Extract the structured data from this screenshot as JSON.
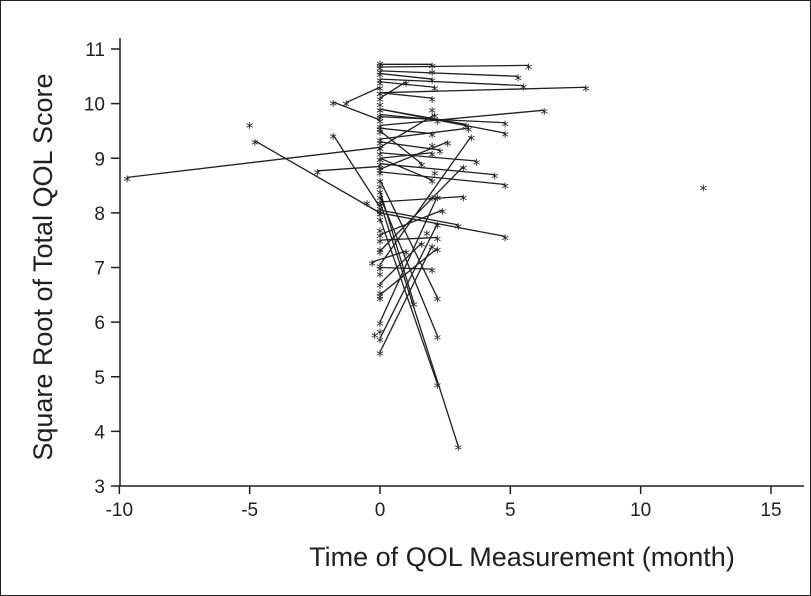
{
  "chart_data": {
    "type": "scatter",
    "title": "",
    "xlabel": "Time of QOL Measurement (month)",
    "ylabel": "Square Root of Total QOL Score",
    "xlim": [
      -10,
      16
    ],
    "ylim": [
      3,
      11.2
    ],
    "xticks": [
      -10,
      -5,
      0,
      5,
      10,
      15
    ],
    "xtick_labels": [
      "-10",
      "-5",
      "0",
      "5",
      "10",
      "15"
    ],
    "yticks": [
      3,
      4,
      5,
      6,
      7,
      8,
      9,
      10,
      11
    ],
    "ytick_labels": [
      "3",
      "4",
      "5",
      "6",
      "7",
      "8",
      "9",
      "10",
      "11"
    ],
    "marker": "*",
    "grid": false,
    "legend": "none",
    "color": "#231f20",
    "note": "Each patient's repeated measurements are joined by a line segment.",
    "segments": [
      {
        "x": [
          -9.7,
          0.0
        ],
        "y": [
          8.65,
          9.2
        ]
      },
      {
        "x": [
          -4.8,
          0.0
        ],
        "y": [
          9.32,
          8.0
        ]
      },
      {
        "x": [
          -1.8,
          0.0
        ],
        "y": [
          9.43,
          8.1
        ]
      },
      {
        "x": [
          -1.8,
          0.0
        ],
        "y": [
          10.03,
          9.7
        ]
      },
      {
        "x": [
          -2.4,
          0.0
        ],
        "y": [
          8.77,
          8.85
        ]
      },
      {
        "x": [
          -1.3,
          0.0
        ],
        "y": [
          10.02,
          10.3
        ]
      },
      {
        "x": [
          0.0,
          5.7
        ],
        "y": [
          10.67,
          10.7
        ]
      },
      {
        "x": [
          0.0,
          5.3
        ],
        "y": [
          10.6,
          10.5
        ]
      },
      {
        "x": [
          0.0,
          2.0
        ],
        "y": [
          10.72,
          10.72
        ]
      },
      {
        "x": [
          0.0,
          2.0
        ],
        "y": [
          10.55,
          10.45
        ]
      },
      {
        "x": [
          0.0,
          2.1
        ],
        "y": [
          10.4,
          10.3
        ]
      },
      {
        "x": [
          0.0,
          2.0
        ],
        "y": [
          10.2,
          10.1
        ]
      },
      {
        "x": [
          0.0,
          5.5
        ],
        "y": [
          10.45,
          10.33
        ]
      },
      {
        "x": [
          0.0,
          7.9
        ],
        "y": [
          10.2,
          10.3
        ]
      },
      {
        "x": [
          0.0,
          6.3
        ],
        "y": [
          9.6,
          9.88
        ]
      },
      {
        "x": [
          0.0,
          4.8
        ],
        "y": [
          9.9,
          9.46
        ]
      },
      {
        "x": [
          0.0,
          4.8
        ],
        "y": [
          9.76,
          9.65
        ]
      },
      {
        "x": [
          0.0,
          3.3
        ],
        "y": [
          9.9,
          9.62
        ]
      },
      {
        "x": [
          0.0,
          2.2
        ],
        "y": [
          9.8,
          9.7
        ]
      },
      {
        "x": [
          0.0,
          2.0
        ],
        "y": [
          9.55,
          9.45
        ]
      },
      {
        "x": [
          0.0,
          3.4
        ],
        "y": [
          9.35,
          9.55
        ]
      },
      {
        "x": [
          0.0,
          3.7
        ],
        "y": [
          9.1,
          8.95
        ]
      },
      {
        "x": [
          0.0,
          2.0
        ],
        "y": [
          9.0,
          9.1
        ]
      },
      {
        "x": [
          0.0,
          4.4
        ],
        "y": [
          8.9,
          8.7
        ]
      },
      {
        "x": [
          0.0,
          4.8
        ],
        "y": [
          8.75,
          8.52
        ]
      },
      {
        "x": [
          0.0,
          4.8
        ],
        "y": [
          8.0,
          7.57
        ]
      },
      {
        "x": [
          0.0,
          3.2
        ],
        "y": [
          8.2,
          8.3
        ]
      },
      {
        "x": [
          0.0,
          3.2
        ],
        "y": [
          7.3,
          8.85
        ]
      },
      {
        "x": [
          0.0,
          2.4
        ],
        "y": [
          7.6,
          8.05
        ]
      },
      {
        "x": [
          0.0,
          2.2
        ],
        "y": [
          7.5,
          7.55
        ]
      },
      {
        "x": [
          0.0,
          3.0
        ],
        "y": [
          8.05,
          7.78
        ]
      },
      {
        "x": [
          0.0,
          3.5
        ],
        "y": [
          7.05,
          9.4
        ]
      },
      {
        "x": [
          0.0,
          3.0
        ],
        "y": [
          8.2,
          3.73
        ]
      },
      {
        "x": [
          0.0,
          2.2
        ],
        "y": [
          7.9,
          4.87
        ]
      },
      {
        "x": [
          0.0,
          2.2
        ],
        "y": [
          8.3,
          5.75
        ]
      },
      {
        "x": [
          0.0,
          2.2
        ],
        "y": [
          8.6,
          6.45
        ]
      },
      {
        "x": [
          0.0,
          1.3
        ],
        "y": [
          8.4,
          6.35
        ]
      },
      {
        "x": [
          0.0,
          2.0
        ],
        "y": [
          9.0,
          8.6
        ]
      },
      {
        "x": [
          0.0,
          2.1
        ],
        "y": [
          9.2,
          9.8
        ]
      },
      {
        "x": [
          0.0,
          2.0
        ],
        "y": [
          7.0,
          6.97
        ]
      },
      {
        "x": [
          0.0,
          2.2
        ],
        "y": [
          6.5,
          7.35
        ]
      },
      {
        "x": [
          0.0,
          2.2
        ],
        "y": [
          6.0,
          8.3
        ]
      },
      {
        "x": [
          0.0,
          2.2
        ],
        "y": [
          5.7,
          7.8
        ]
      },
      {
        "x": [
          0.0,
          2.0
        ],
        "y": [
          5.45,
          7.4
        ]
      },
      {
        "x": [
          0.0,
          1.6
        ],
        "y": [
          6.7,
          7.45
        ]
      },
      {
        "x": [
          -0.3,
          1.0
        ],
        "y": [
          7.1,
          7.3
        ]
      },
      {
        "x": [
          0.0,
          1.6
        ],
        "y": [
          9.5,
          8.9
        ]
      },
      {
        "x": [
          0.0,
          1.0
        ],
        "y": [
          10.1,
          10.4
        ]
      },
      {
        "x": [
          0.0,
          2.3
        ],
        "y": [
          9.3,
          9.15
        ]
      },
      {
        "x": [
          0.0,
          2.6
        ],
        "y": [
          8.8,
          9.3
        ]
      }
    ],
    "points": [
      {
        "x": -5.0,
        "y": 9.63
      },
      {
        "x": 12.4,
        "y": 8.48
      },
      {
        "x": -0.2,
        "y": 5.78
      },
      {
        "x": -0.5,
        "y": 8.2
      },
      {
        "x": 0.0,
        "y": 6.45
      },
      {
        "x": 0.0,
        "y": 6.55
      },
      {
        "x": 0.0,
        "y": 5.85
      },
      {
        "x": 0.0,
        "y": 6.9
      },
      {
        "x": 0.0,
        "y": 7.35
      },
      {
        "x": 0.0,
        "y": 7.7
      },
      {
        "x": 0.0,
        "y": 8.5
      },
      {
        "x": 0.0,
        "y": 9.55
      },
      {
        "x": 0.0,
        "y": 10.0
      },
      {
        "x": 0.0,
        "y": 10.75
      },
      {
        "x": 2.0,
        "y": 10.6
      },
      {
        "x": 2.0,
        "y": 9.9
      },
      {
        "x": 2.0,
        "y": 9.25
      },
      {
        "x": 2.0,
        "y": 8.3
      },
      {
        "x": 2.1,
        "y": 8.75
      },
      {
        "x": 1.8,
        "y": 7.65
      }
    ]
  }
}
